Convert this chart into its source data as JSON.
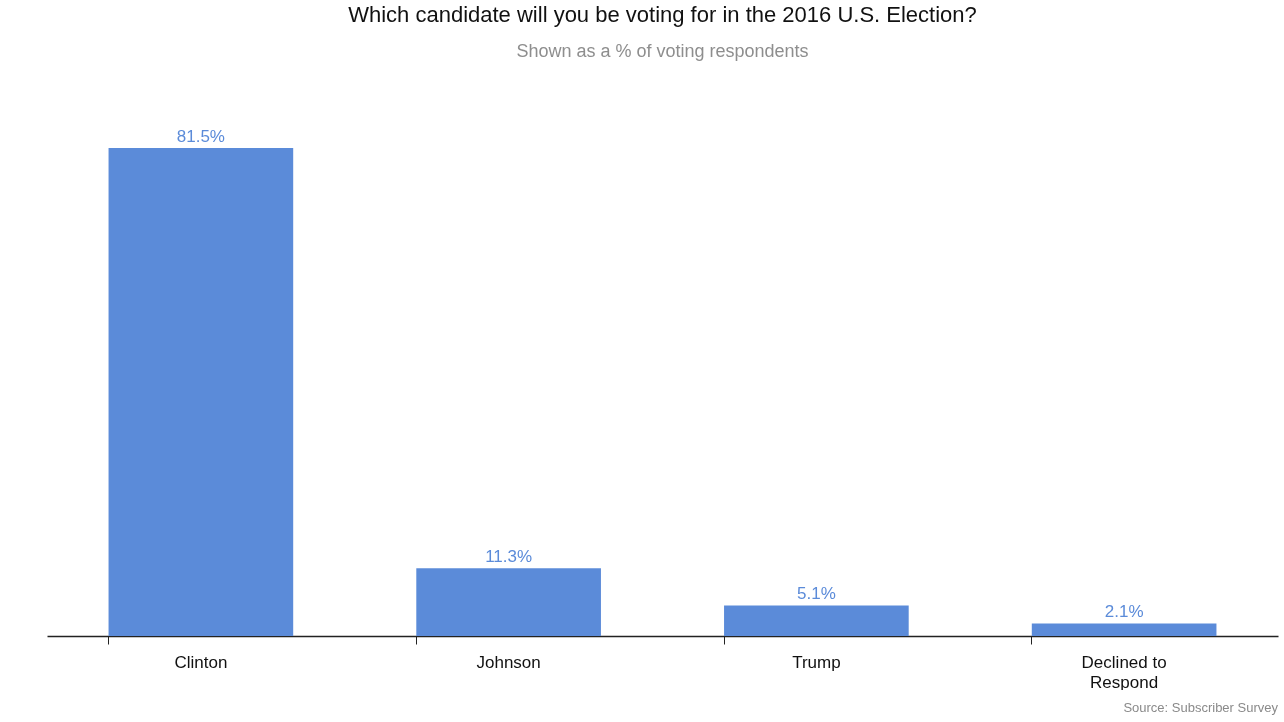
{
  "chart_data": {
    "type": "bar",
    "title": "Which candidate will you be voting for in the 2016 U.S. Election?",
    "subtitle": "Shown as a % of voting respondents",
    "categories": [
      "Clinton",
      "Johnson",
      "Trump",
      "Declined to Respond"
    ],
    "values": [
      81.5,
      11.3,
      5.1,
      2.1
    ],
    "value_labels": [
      "81.5%",
      "11.3%",
      "5.1%",
      "2.1%"
    ],
    "color": "#5b8bd9",
    "relative": false,
    "grid": false,
    "annotations": [
      "Source: Subscriber Survey"
    ]
  }
}
